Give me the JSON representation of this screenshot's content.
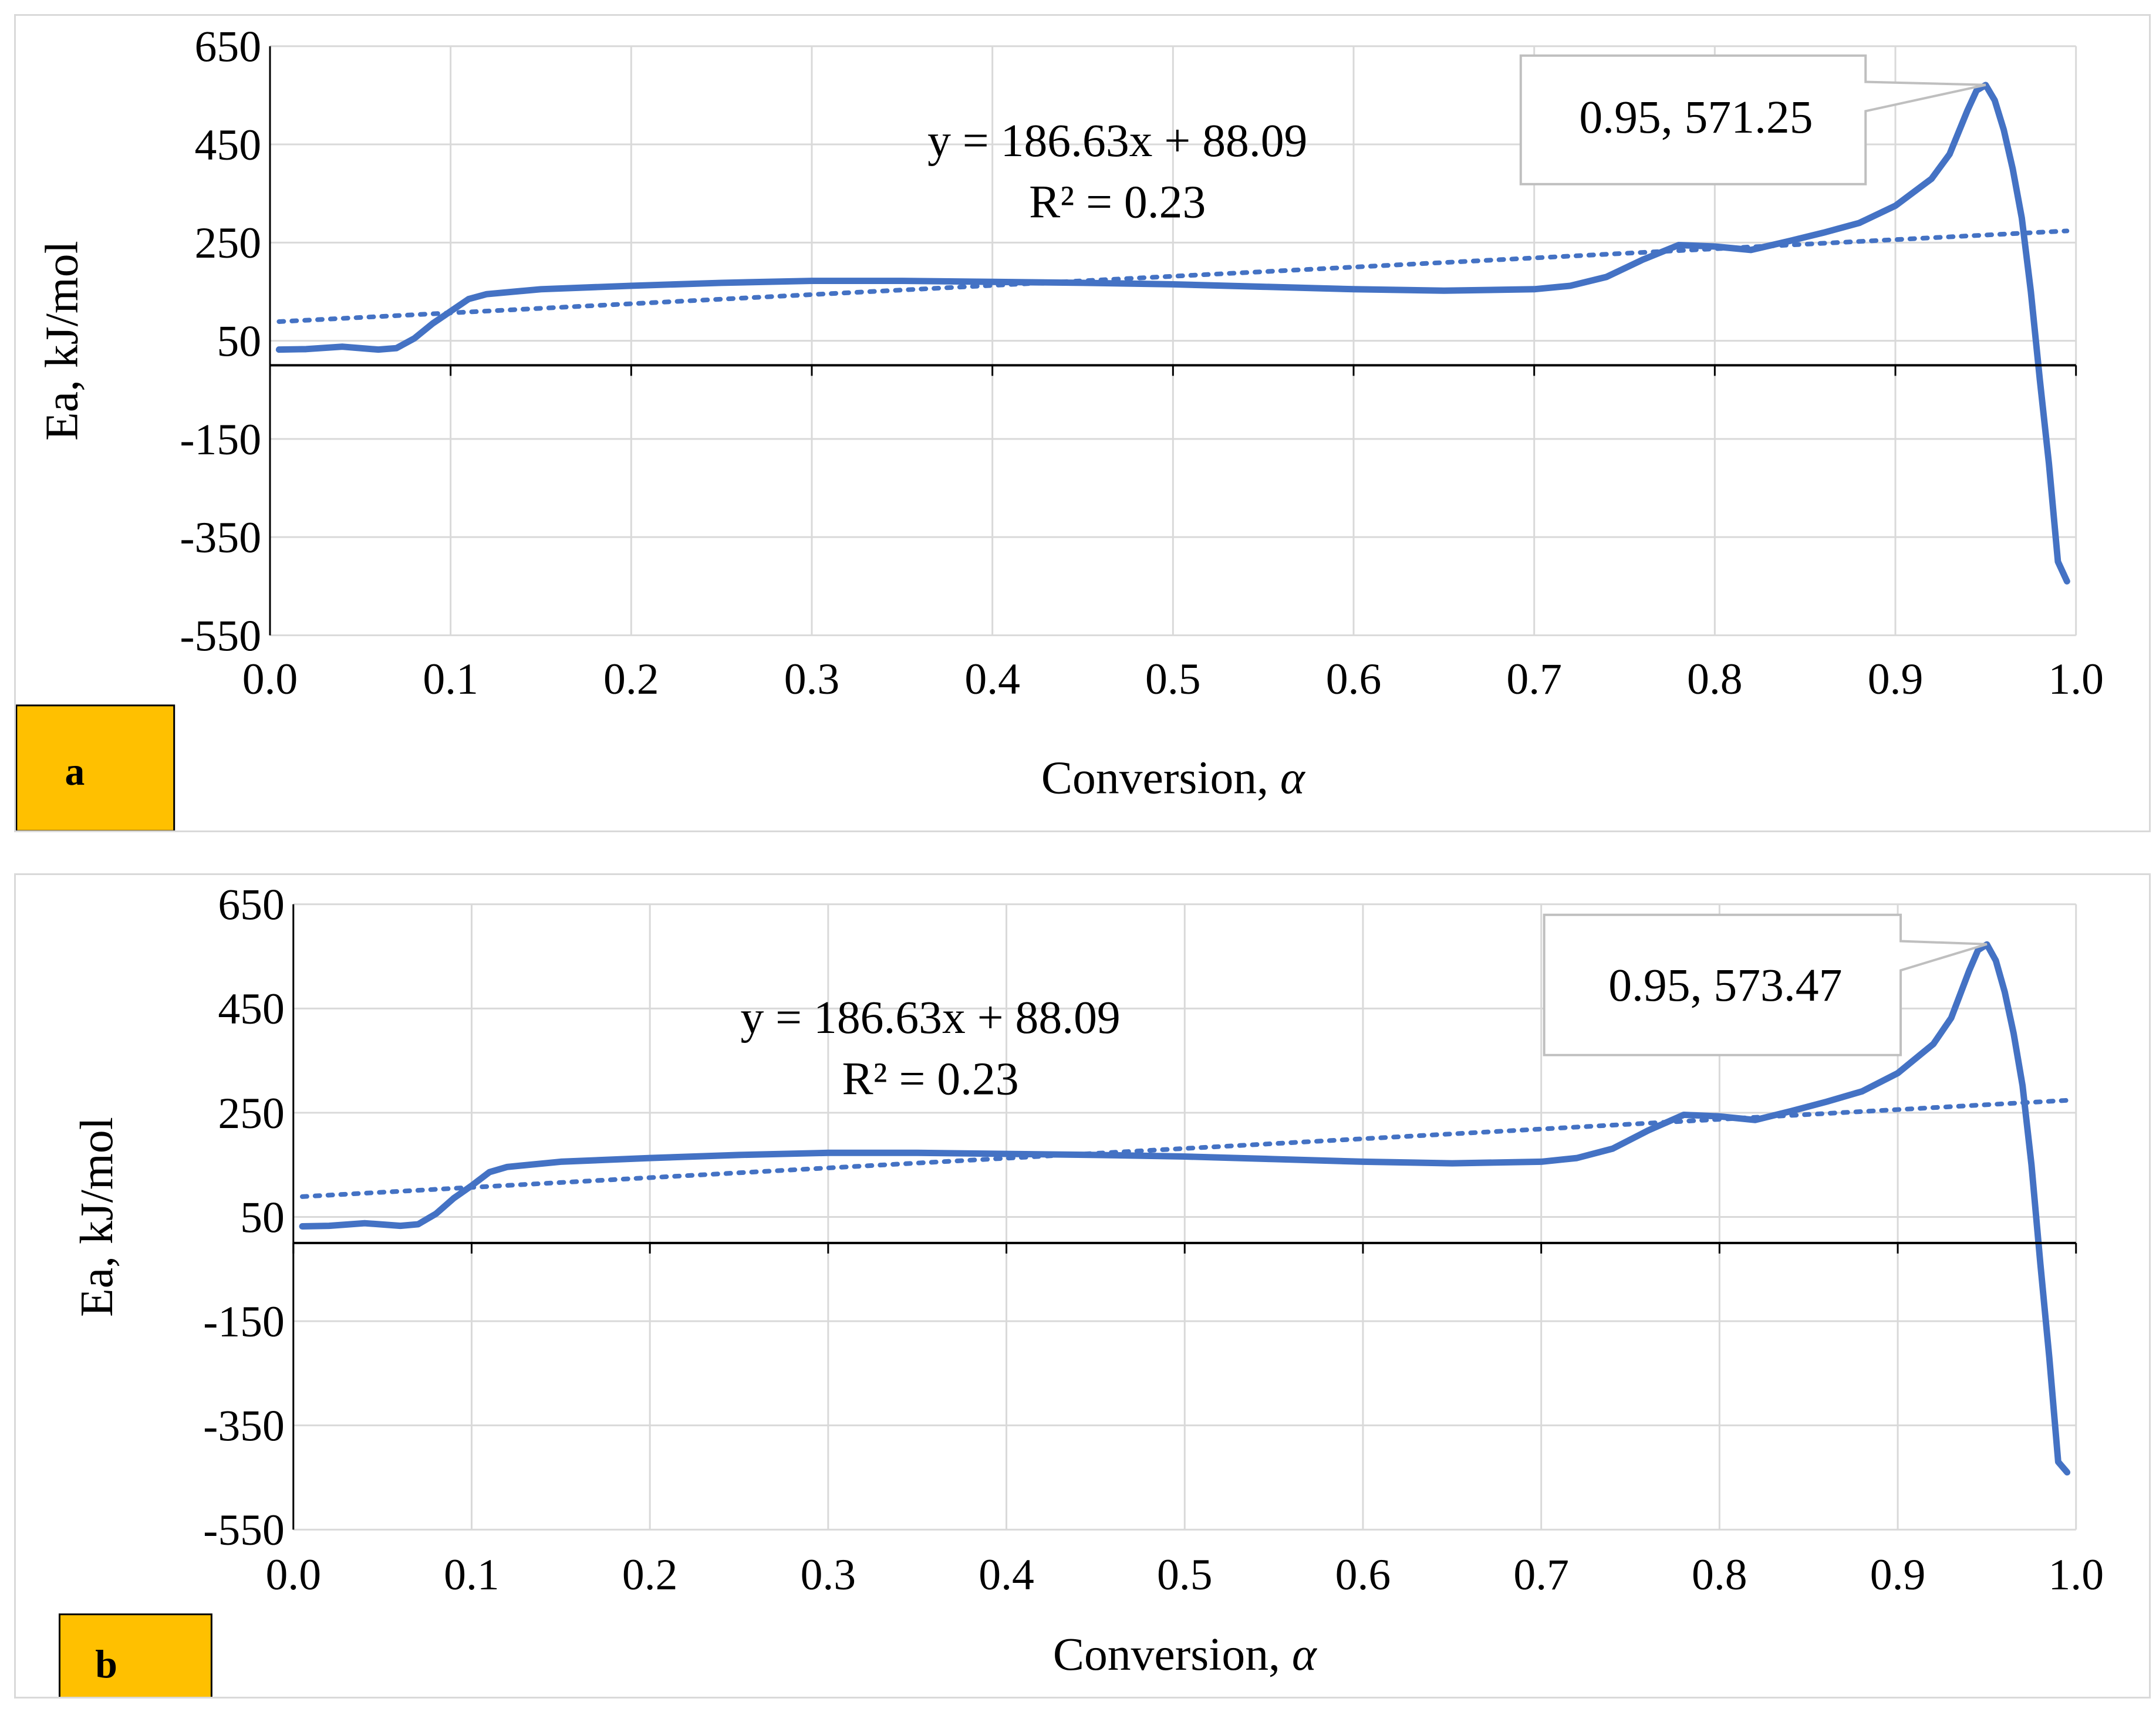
{
  "chart_data": [
    {
      "type": "line",
      "panel_label": "a",
      "xlabel": "Conversion, ",
      "xlabel_symbol": "α",
      "ylabel": "Ea, kJ/mol",
      "xlim": [
        0.0,
        1.0
      ],
      "ylim": [
        -550,
        650
      ],
      "x_ticks": [
        "0.0",
        "0.1",
        "0.2",
        "0.3",
        "0.4",
        "0.5",
        "0.6",
        "0.7",
        "0.8",
        "0.9",
        "1.0"
      ],
      "y_ticks": [
        "650",
        "450",
        "250",
        "50",
        "-150",
        "-350",
        "-550"
      ],
      "series": [
        {
          "name": "Ea",
          "color": "#4472C4",
          "x": [
            0.005,
            0.02,
            0.04,
            0.06,
            0.07,
            0.08,
            0.09,
            0.1,
            0.11,
            0.12,
            0.15,
            0.2,
            0.25,
            0.3,
            0.35,
            0.4,
            0.45,
            0.5,
            0.55,
            0.6,
            0.65,
            0.7,
            0.72,
            0.74,
            0.76,
            0.78,
            0.8,
            0.82,
            0.84,
            0.86,
            0.88,
            0.9,
            0.92,
            0.93,
            0.94,
            0.945,
            0.95,
            0.955,
            0.96,
            0.965,
            0.97,
            0.975,
            0.98,
            0.985,
            0.99,
            0.995
          ],
          "y": [
            32,
            33,
            38,
            32,
            35,
            55,
            85,
            110,
            135,
            145,
            155,
            162,
            168,
            172,
            172,
            170,
            168,
            165,
            160,
            155,
            152,
            155,
            162,
            180,
            215,
            245,
            242,
            235,
            252,
            270,
            290,
            325,
            380,
            430,
            520,
            560,
            571,
            540,
            480,
            400,
            300,
            150,
            -30,
            -200,
            -400,
            -440
          ]
        }
      ],
      "trendline": {
        "type": "linear",
        "slope": 186.63,
        "intercept": 88.09,
        "color": "#4472C4"
      },
      "equation": "y = 186.63x + 88.09",
      "r_squared": "R² = 0.23",
      "callout": {
        "x": 0.95,
        "y": 571.25,
        "text": "0.95, 571.25"
      }
    },
    {
      "type": "line",
      "panel_label": "b",
      "xlabel": "Conversion, ",
      "xlabel_symbol": "α",
      "ylabel": "Ea, kJ/mol",
      "xlim": [
        0.0,
        1.0
      ],
      "ylim": [
        -550,
        650
      ],
      "x_ticks": [
        "0.0",
        "0.1",
        "0.2",
        "0.3",
        "0.4",
        "0.5",
        "0.6",
        "0.7",
        "0.8",
        "0.9",
        "1.0"
      ],
      "y_ticks": [
        "650",
        "450",
        "250",
        "50",
        "-150",
        "-350",
        "-550"
      ],
      "series": [
        {
          "name": "Ea",
          "color": "#4472C4",
          "x": [
            0.005,
            0.02,
            0.04,
            0.06,
            0.07,
            0.08,
            0.09,
            0.1,
            0.11,
            0.12,
            0.15,
            0.2,
            0.25,
            0.3,
            0.35,
            0.4,
            0.45,
            0.5,
            0.55,
            0.6,
            0.65,
            0.7,
            0.72,
            0.74,
            0.76,
            0.78,
            0.8,
            0.82,
            0.84,
            0.86,
            0.88,
            0.9,
            0.92,
            0.93,
            0.94,
            0.945,
            0.95,
            0.955,
            0.96,
            0.965,
            0.97,
            0.975,
            0.98,
            0.985,
            0.99,
            0.995
          ],
          "y": [
            32,
            33,
            38,
            33,
            36,
            56,
            86,
            110,
            136,
            146,
            156,
            163,
            169,
            173,
            173,
            171,
            169,
            166,
            161,
            156,
            153,
            156,
            163,
            181,
            216,
            246,
            243,
            236,
            253,
            271,
            291,
            326,
            382,
            432,
            522,
            562,
            573,
            542,
            482,
            402,
            302,
            150,
            -40,
            -220,
            -420,
            -440
          ]
        }
      ],
      "trendline": {
        "type": "linear",
        "slope": 186.63,
        "intercept": 88.09,
        "color": "#4472C4"
      },
      "equation": "y = 186.63x + 88.09",
      "r_squared": "R² = 0.23",
      "callout": {
        "x": 0.95,
        "y": 573.47,
        "text": "0.95, 573.47"
      }
    }
  ],
  "colors": {
    "series": "#4472C4",
    "grid": "#d9d9d9",
    "tag_fill": "#FFC000"
  }
}
